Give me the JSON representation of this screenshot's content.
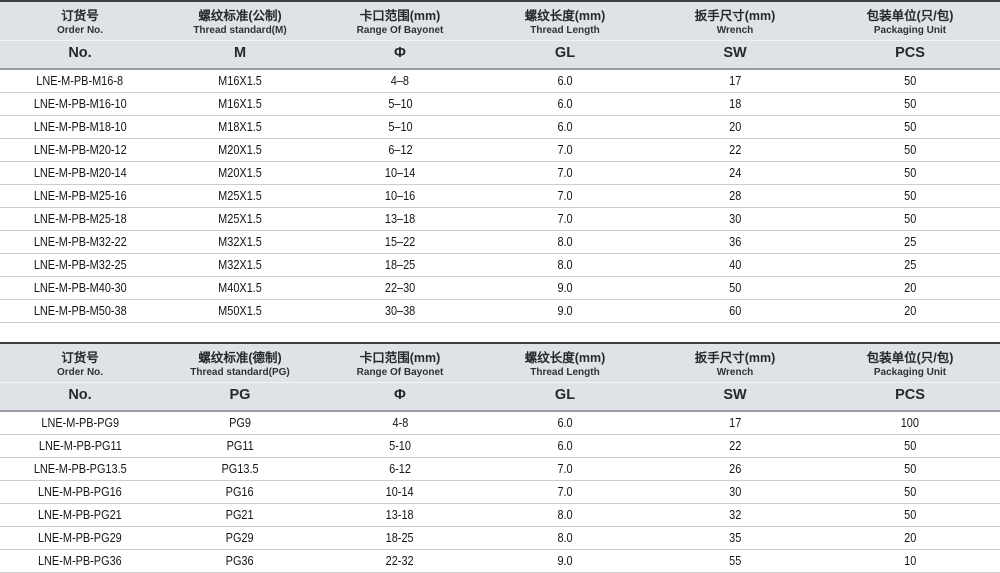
{
  "colors": {
    "header_bg": "#dfe2e6",
    "table_top_border": "#3e4144",
    "header_underline": "#9b9ea1",
    "row_divider": "#cbced1",
    "text": "#141618"
  },
  "tables": [
    {
      "name": "metric-thread-spec-table",
      "columns": [
        {
          "zh": "订货号",
          "en": "Order No.",
          "symbol": "No."
        },
        {
          "zh": "螺纹标准(公制)",
          "en": "Thread standard(M)",
          "symbol": "M"
        },
        {
          "zh": "卡口范围(mm)",
          "en": "Range Of Bayonet",
          "symbol": "Φ"
        },
        {
          "zh": "螺纹长度(mm)",
          "en": "Thread Length",
          "symbol": "GL"
        },
        {
          "zh": "扳手尺寸(mm)",
          "en": "Wrench",
          "symbol": "SW"
        },
        {
          "zh": "包装单位(只/包)",
          "en": "Packaging Unit",
          "symbol": "PCS"
        }
      ],
      "rows": [
        [
          "LNE-M-PB-M16-8",
          "M16X1.5",
          "4–8",
          "6.0",
          "17",
          "50"
        ],
        [
          "LNE-M-PB-M16-10",
          "M16X1.5",
          "5–10",
          "6.0",
          "18",
          "50"
        ],
        [
          "LNE-M-PB-M18-10",
          "M18X1.5",
          "5–10",
          "6.0",
          "20",
          "50"
        ],
        [
          "LNE-M-PB-M20-12",
          "M20X1.5",
          "6–12",
          "7.0",
          "22",
          "50"
        ],
        [
          "LNE-M-PB-M20-14",
          "M20X1.5",
          "10–14",
          "7.0",
          "24",
          "50"
        ],
        [
          "LNE-M-PB-M25-16",
          "M25X1.5",
          "10–16",
          "7.0",
          "28",
          "50"
        ],
        [
          "LNE-M-PB-M25-18",
          "M25X1.5",
          "13–18",
          "7.0",
          "30",
          "50"
        ],
        [
          "LNE-M-PB-M32-22",
          "M32X1.5",
          "15–22",
          "8.0",
          "36",
          "25"
        ],
        [
          "LNE-M-PB-M32-25",
          "M32X1.5",
          "18–25",
          "8.0",
          "40",
          "25"
        ],
        [
          "LNE-M-PB-M40-30",
          "M40X1.5",
          "22–30",
          "9.0",
          "50",
          "20"
        ],
        [
          "LNE-M-PB-M50-38",
          "M50X1.5",
          "30–38",
          "9.0",
          "60",
          "20"
        ]
      ]
    },
    {
      "name": "pg-thread-spec-table",
      "columns": [
        {
          "zh": "订货号",
          "en": "Order No.",
          "symbol": "No."
        },
        {
          "zh": "螺纹标准(德制)",
          "en": "Thread standard(PG)",
          "symbol": "PG"
        },
        {
          "zh": "卡口范围(mm)",
          "en": "Range Of Bayonet",
          "symbol": "Φ"
        },
        {
          "zh": "螺纹长度(mm)",
          "en": "Thread Length",
          "symbol": "GL"
        },
        {
          "zh": "扳手尺寸(mm)",
          "en": "Wrench",
          "symbol": "SW"
        },
        {
          "zh": "包装单位(只/包)",
          "en": "Packaging Unit",
          "symbol": "PCS"
        }
      ],
      "rows": [
        [
          "LNE-M-PB-PG9",
          "PG9",
          "4-8",
          "6.0",
          "17",
          "100"
        ],
        [
          "LNE-M-PB-PG11",
          "PG11",
          "5-10",
          "6.0",
          "22",
          "50"
        ],
        [
          "LNE-M-PB-PG13.5",
          "PG13.5",
          "6-12",
          "7.0",
          "26",
          "50"
        ],
        [
          "LNE-M-PB-PG16",
          "PG16",
          "10-14",
          "7.0",
          "30",
          "50"
        ],
        [
          "LNE-M-PB-PG21",
          "PG21",
          "13-18",
          "8.0",
          "32",
          "50"
        ],
        [
          "LNE-M-PB-PG29",
          "PG29",
          "18-25",
          "8.0",
          "35",
          "20"
        ],
        [
          "LNE-M-PB-PG36",
          "PG36",
          "22-32",
          "9.0",
          "55",
          "10"
        ]
      ]
    }
  ]
}
